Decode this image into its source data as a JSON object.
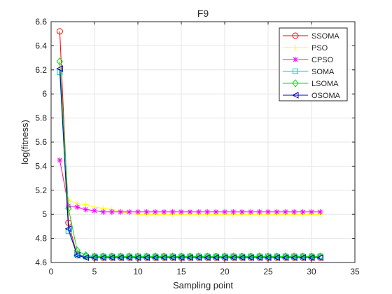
{
  "chart_data": {
    "type": "line",
    "title": "F9",
    "xlabel": "Sampling point",
    "ylabel": "log(fitness)",
    "xlim": [
      0,
      35
    ],
    "ylim": [
      4.6,
      6.6
    ],
    "xticks": [
      0,
      5,
      10,
      15,
      20,
      25,
      30,
      35
    ],
    "yticks": [
      4.6,
      4.8,
      5,
      5.2,
      5.4,
      5.6,
      5.8,
      6,
      6.2,
      6.4,
      6.6
    ],
    "xtick_labels": [
      "0",
      "5",
      "10",
      "15",
      "20",
      "25",
      "30",
      "35"
    ],
    "ytick_labels": [
      "4.6",
      "4.8",
      "5",
      "5.2",
      "5.4",
      "5.6",
      "5.8",
      "6",
      "6.2",
      "6.4",
      "6.6"
    ],
    "grid": true,
    "legend_position": "top-right",
    "x": [
      1,
      2,
      3,
      4,
      5,
      6,
      7,
      8,
      9,
      10,
      11,
      12,
      13,
      14,
      15,
      16,
      17,
      18,
      19,
      20,
      21,
      22,
      23,
      24,
      25,
      26,
      27,
      28,
      29,
      30,
      31
    ],
    "series": [
      {
        "name": "SSOMA",
        "color": "#ff0000",
        "marker": "circle",
        "values": [
          6.52,
          4.93,
          4.66,
          4.65,
          4.64,
          4.64,
          4.64,
          4.64,
          4.64,
          4.64,
          4.64,
          4.64,
          4.64,
          4.64,
          4.64,
          4.64,
          4.64,
          4.64,
          4.64,
          4.64,
          4.64,
          4.64,
          4.64,
          4.64,
          4.64,
          4.64,
          4.64,
          4.64,
          4.64,
          4.64,
          4.64
        ]
      },
      {
        "name": "PSO",
        "color": "#ffff00",
        "marker": "plus",
        "values": [
          5.45,
          5.12,
          5.09,
          5.08,
          5.06,
          5.05,
          5.04,
          5.02,
          5.01,
          5.0,
          5.0,
          5.0,
          5.0,
          5.0,
          5.0,
          5.0,
          5.0,
          5.0,
          5.0,
          5.0,
          5.0,
          5.0,
          5.0,
          5.0,
          5.0,
          5.0,
          5.0,
          5.0,
          5.0,
          5.0,
          5.0
        ]
      },
      {
        "name": "CPSO",
        "color": "#ff00ff",
        "marker": "star",
        "values": [
          5.45,
          5.07,
          5.06,
          5.04,
          5.03,
          5.02,
          5.02,
          5.02,
          5.02,
          5.02,
          5.02,
          5.02,
          5.02,
          5.02,
          5.02,
          5.02,
          5.02,
          5.02,
          5.02,
          5.02,
          5.02,
          5.02,
          5.02,
          5.02,
          5.02,
          5.02,
          5.02,
          5.02,
          5.02,
          5.02,
          5.02
        ]
      },
      {
        "name": "SOMA",
        "color": "#00cccc",
        "marker": "square",
        "values": [
          6.18,
          4.86,
          4.67,
          4.65,
          4.65,
          4.65,
          4.65,
          4.65,
          4.65,
          4.65,
          4.65,
          4.65,
          4.65,
          4.65,
          4.65,
          4.65,
          4.65,
          4.65,
          4.65,
          4.65,
          4.65,
          4.65,
          4.65,
          4.65,
          4.65,
          4.65,
          4.65,
          4.65,
          4.65,
          4.65,
          4.65
        ]
      },
      {
        "name": "LSOMA",
        "color": "#00dd00",
        "marker": "diamond",
        "values": [
          6.27,
          5.05,
          4.7,
          4.66,
          4.65,
          4.65,
          4.65,
          4.65,
          4.65,
          4.65,
          4.65,
          4.65,
          4.65,
          4.65,
          4.65,
          4.65,
          4.65,
          4.65,
          4.65,
          4.65,
          4.65,
          4.65,
          4.65,
          4.65,
          4.65,
          4.65,
          4.65,
          4.65,
          4.65,
          4.65,
          4.65
        ]
      },
      {
        "name": "OSOMA",
        "color": "#0000cc",
        "marker": "triangle-left",
        "values": [
          6.21,
          4.88,
          4.66,
          4.64,
          4.64,
          4.64,
          4.64,
          4.64,
          4.64,
          4.64,
          4.64,
          4.64,
          4.64,
          4.64,
          4.64,
          4.64,
          4.64,
          4.64,
          4.64,
          4.64,
          4.64,
          4.64,
          4.64,
          4.64,
          4.64,
          4.64,
          4.64,
          4.64,
          4.64,
          4.64,
          4.64
        ]
      }
    ]
  }
}
